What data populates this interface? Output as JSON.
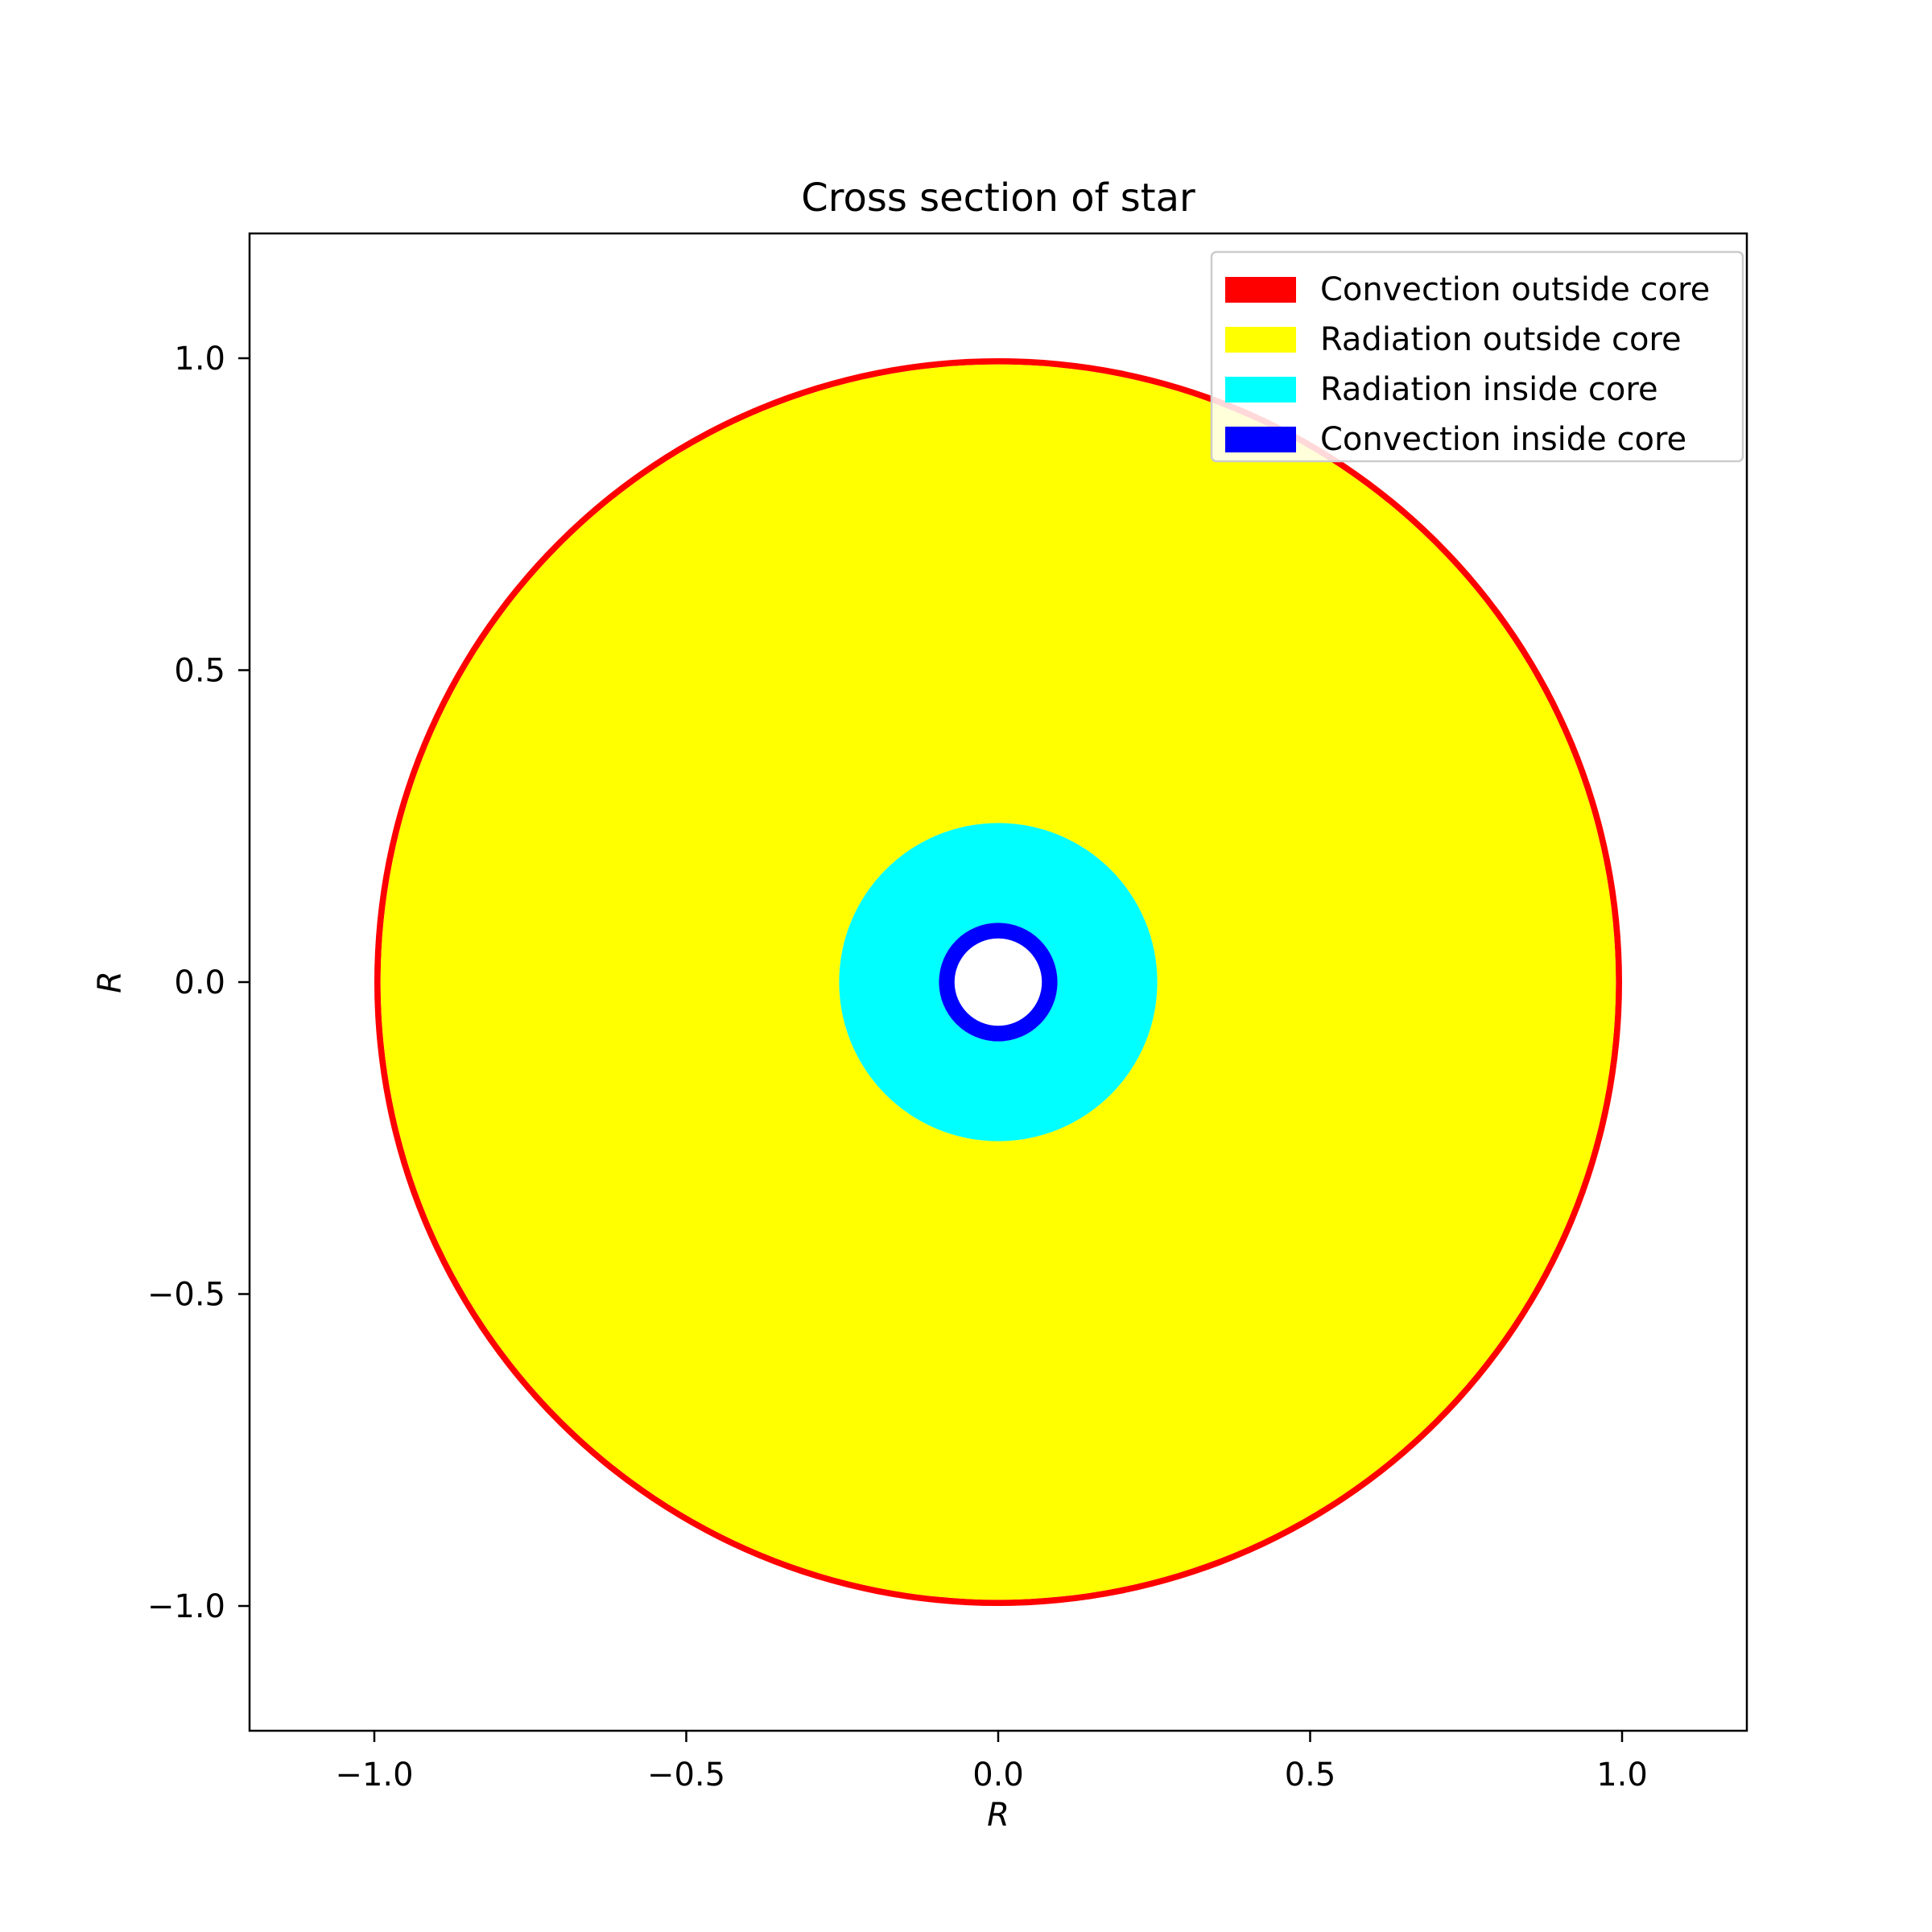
{
  "chart_data": {
    "type": "area",
    "title": "Cross section of star",
    "xlabel": "R",
    "ylabel": "R",
    "xlim": [
      -1.2,
      1.2
    ],
    "ylim": [
      -1.2,
      1.2
    ],
    "grid": false,
    "legend_position": "top-right",
    "x_ticks": [
      -1.0,
      -0.5,
      0.0,
      0.5,
      1.0
    ],
    "y_ticks": [
      -1.0,
      -0.5,
      0.0,
      0.5,
      1.0
    ],
    "x_tick_labels": [
      "−1.0",
      "−0.5",
      "0.0",
      "0.5",
      "1.0"
    ],
    "y_tick_labels": [
      "−1.0",
      "−0.5",
      "0.0",
      "0.5",
      "1.0"
    ],
    "series": [
      {
        "name": "Convection outside core",
        "color": "#ff0000",
        "r_inner": 0.99,
        "r_outer": 1.0
      },
      {
        "name": "Radiation outside core",
        "color": "#ffff00",
        "r_inner": 0.255,
        "r_outer": 0.99
      },
      {
        "name": "Radiation inside core",
        "color": "#00ffff",
        "r_inner": 0.095,
        "r_outer": 0.255
      },
      {
        "name": "Convection inside core",
        "color": "#0000ff",
        "r_inner": 0.07,
        "r_outer": 0.095
      }
    ]
  }
}
